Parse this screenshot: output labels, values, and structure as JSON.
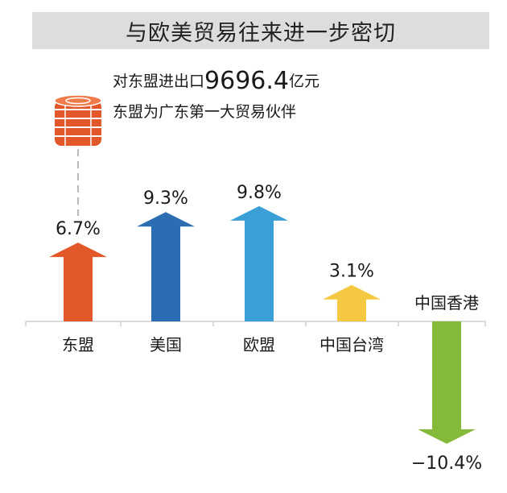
{
  "title": "与欧美贸易往来进一步密切",
  "notes": {
    "asean_prefix": "对东盟进出口",
    "asean_value": "9696.4",
    "asean_unit": "亿元",
    "partner_text": "东盟为广东第一大贸易伙伴"
  },
  "coin_icon": "coin-stack-icon",
  "chart_data": {
    "type": "bar",
    "title": "",
    "xlabel": "",
    "ylabel": "",
    "categories": [
      "东盟",
      "美国",
      "欧盟",
      "中国台湾",
      "中国香港"
    ],
    "values": [
      6.7,
      9.3,
      9.8,
      3.1,
      -10.4
    ],
    "value_labels": [
      "6.7%",
      "9.3%",
      "9.8%",
      "3.1%",
      "−10.4%"
    ],
    "colors": [
      "#e2582a",
      "#2a6db2",
      "#3a9fd6",
      "#f5c842",
      "#84b93a"
    ],
    "grid": false,
    "legend": "none"
  }
}
